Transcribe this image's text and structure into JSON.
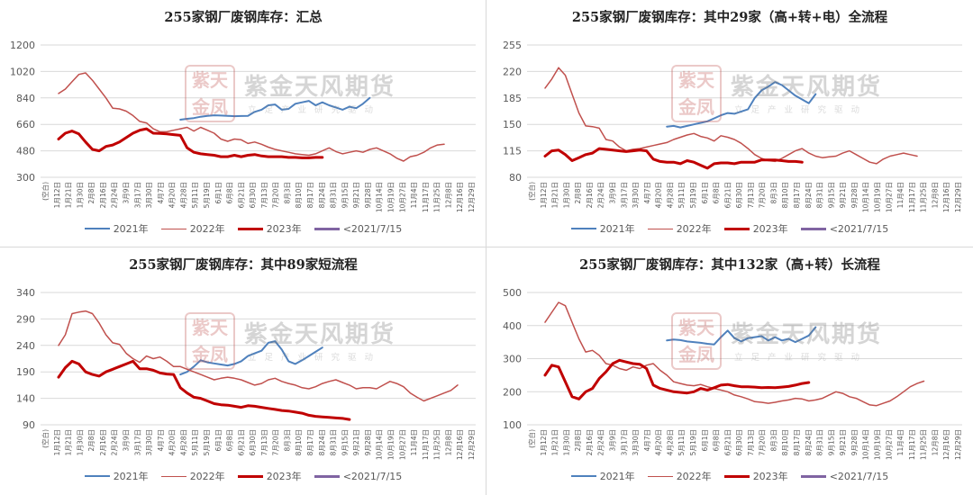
{
  "watermark": {
    "seal": "紫天金凤",
    "name": "紫金天风期货",
    "tagline": "立足产业研究驱动"
  },
  "legend": [
    {
      "label": "2021年",
      "color": "#4f81bd",
      "width": 2
    },
    {
      "label": "2022年",
      "color": "#c0504d",
      "width": 1.5
    },
    {
      "label": "2023年",
      "color": "#c00000",
      "width": 3
    },
    {
      "label": "<2021/7/15",
      "color": "#8064a2",
      "width": 3
    }
  ],
  "x_ticks": [
    "(空白)",
    "1月12日",
    "1月21日",
    "1月30日",
    "2月8日",
    "2月16日",
    "2月24日",
    "3月9日",
    "3月17日",
    "3月30日",
    "4月7日",
    "4月20日",
    "4月28日",
    "5月11日",
    "5月19日",
    "6月1日",
    "6月8日",
    "6月21日",
    "6月30日",
    "7月13日",
    "7月20日",
    "8月3日",
    "8月10日",
    "8月17日",
    "8月24日",
    "8月31日",
    "9月15日",
    "9月21日",
    "9月28日",
    "10月14日",
    "10月19日",
    "10月27日",
    "11月4日",
    "11月17日",
    "11月25日",
    "12月8日",
    "12月16日",
    "12月29日"
  ],
  "chart_data": [
    {
      "type": "line",
      "title": "255家钢厂废钢库存：汇总",
      "ylim": [
        300,
        1200
      ],
      "yticks": [
        300,
        480,
        660,
        840,
        1020,
        1200
      ],
      "series": [
        {
          "name": "2021年",
          "start": 20,
          "values": [
            692,
            698,
            703,
            712,
            718,
            722,
            720,
            718,
            716,
            717,
            718,
            745,
            760,
            790,
            795,
            760,
            765,
            800,
            810,
            820,
            790,
            810,
            790,
            775,
            760,
            780,
            770,
            800,
            840
          ]
        },
        {
          "name": "2022年",
          "start": 2,
          "values": [
            870,
            900,
            950,
            1000,
            1010,
            960,
            900,
            840,
            770,
            765,
            750,
            720,
            680,
            670,
            630,
            610,
            610,
            620,
            630,
            640,
            615,
            640,
            620,
            600,
            560,
            545,
            560,
            555,
            530,
            540,
            525,
            505,
            490,
            480,
            470,
            460,
            455,
            450,
            460,
            480,
            500,
            475,
            460,
            470,
            480,
            470,
            490,
            500,
            480,
            460,
            430,
            410,
            440,
            450,
            470,
            500,
            520,
            525
          ]
        },
        {
          "name": "2023年",
          "start": 2,
          "values": [
            560,
            600,
            615,
            595,
            540,
            490,
            480,
            510,
            520,
            540,
            570,
            600,
            620,
            630,
            600,
            598,
            596,
            590,
            585,
            500,
            470,
            460,
            455,
            450,
            440,
            440,
            450,
            440,
            450,
            455,
            445,
            440,
            440,
            440,
            435,
            435,
            432,
            432,
            435,
            435
          ]
        }
      ]
    },
    {
      "type": "line",
      "title": "255家钢厂废钢库存：其中29家（高+转+电）全流程",
      "ylim": [
        80,
        255
      ],
      "yticks": [
        80,
        115,
        150,
        185,
        220,
        255
      ],
      "series": [
        {
          "name": "2021年",
          "start": 20,
          "values": [
            147,
            148,
            146,
            148,
            150,
            152,
            154,
            158,
            162,
            165,
            164,
            167,
            170,
            185,
            195,
            200,
            206,
            202,
            195,
            188,
            183,
            178,
            190
          ]
        },
        {
          "name": "2022年",
          "start": 2,
          "values": [
            198,
            210,
            225,
            215,
            190,
            165,
            148,
            147,
            145,
            130,
            128,
            120,
            115,
            117,
            118,
            120,
            122,
            124,
            126,
            130,
            133,
            136,
            138,
            134,
            132,
            128,
            135,
            133,
            130,
            125,
            118,
            110,
            105,
            102,
            101,
            105,
            110,
            115,
            118,
            112,
            108,
            106,
            107,
            108,
            112,
            115,
            110,
            105,
            100,
            98,
            104,
            108,
            110,
            112,
            110,
            108
          ]
        },
        {
          "name": "2023年",
          "start": 2,
          "values": [
            108,
            115,
            116,
            110,
            102,
            106,
            110,
            112,
            118,
            117,
            116,
            115,
            114,
            115,
            116,
            115,
            104,
            101,
            100,
            100,
            98,
            102,
            100,
            96,
            92,
            98,
            99,
            99,
            98,
            100,
            100,
            100,
            103,
            103,
            103,
            102,
            101,
            101,
            100
          ]
        }
      ]
    },
    {
      "type": "line",
      "title": "255家钢厂废钢库存：其中89家短流程",
      "ylim": [
        90,
        340
      ],
      "yticks": [
        90,
        140,
        190,
        240,
        290,
        340
      ],
      "series": [
        {
          "name": "2021年",
          "start": 20,
          "values": [
            185,
            190,
            200,
            212,
            208,
            206,
            204,
            202,
            205,
            210,
            220,
            225,
            230,
            245,
            248,
            232,
            210,
            205,
            212,
            220,
            228,
            236
          ]
        },
        {
          "name": "2022年",
          "start": 2,
          "values": [
            240,
            260,
            300,
            303,
            305,
            300,
            282,
            260,
            245,
            242,
            225,
            215,
            208,
            220,
            215,
            218,
            210,
            200,
            200,
            195,
            190,
            185,
            180,
            175,
            178,
            180,
            178,
            175,
            170,
            165,
            168,
            175,
            178,
            172,
            168,
            165,
            160,
            158,
            162,
            168,
            172,
            175,
            170,
            165,
            158,
            160,
            160,
            158,
            165,
            172,
            168,
            162,
            150,
            142,
            135,
            140,
            145,
            150,
            155,
            165
          ]
        },
        {
          "name": "2023年",
          "start": 2,
          "values": [
            180,
            198,
            210,
            205,
            190,
            185,
            182,
            190,
            195,
            200,
            205,
            210,
            196,
            196,
            193,
            188,
            186,
            185,
            160,
            150,
            142,
            140,
            135,
            130,
            128,
            127,
            125,
            123,
            126,
            125,
            123,
            121,
            119,
            117,
            116,
            114,
            112,
            108,
            106,
            105,
            104,
            103,
            102,
            100
          ]
        }
      ]
    },
    {
      "type": "line",
      "title": "255家钢厂废钢库存：其中132家（高+转）长流程",
      "ylim": [
        100,
        500
      ],
      "yticks": [
        100,
        200,
        300,
        400,
        500
      ],
      "series": [
        {
          "name": "2021年",
          "start": 20,
          "values": [
            355,
            358,
            356,
            352,
            350,
            348,
            345,
            343,
            365,
            385,
            362,
            352,
            362,
            365,
            368,
            355,
            365,
            355,
            360,
            350,
            360,
            370,
            395
          ]
        },
        {
          "name": "2022年",
          "start": 2,
          "values": [
            410,
            440,
            470,
            460,
            410,
            360,
            320,
            325,
            310,
            285,
            280,
            270,
            265,
            275,
            270,
            280,
            285,
            265,
            250,
            230,
            225,
            220,
            218,
            222,
            215,
            210,
            205,
            200,
            190,
            185,
            178,
            170,
            168,
            165,
            168,
            172,
            175,
            180,
            178,
            172,
            175,
            180,
            190,
            200,
            195,
            185,
            180,
            170,
            160,
            158,
            165,
            172,
            185,
            200,
            215,
            225,
            232
          ]
        },
        {
          "name": "2023年",
          "start": 2,
          "values": [
            250,
            280,
            275,
            230,
            185,
            178,
            200,
            210,
            240,
            260,
            285,
            295,
            290,
            285,
            283,
            270,
            220,
            210,
            205,
            200,
            198,
            196,
            200,
            210,
            205,
            212,
            220,
            222,
            218,
            215,
            215,
            214,
            212,
            213,
            212,
            214,
            216,
            220,
            225,
            228
          ]
        }
      ]
    }
  ]
}
